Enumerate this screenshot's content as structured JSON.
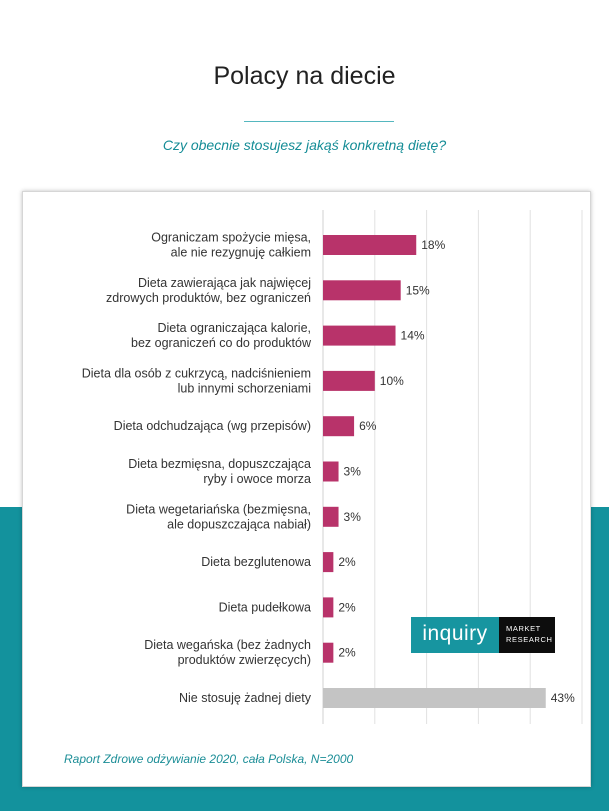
{
  "header": {
    "title": "Polacy na diecie",
    "subtitle": "Czy obecnie stosujesz jakąś konkretną dietę?"
  },
  "chart_data": {
    "type": "bar",
    "orientation": "horizontal",
    "title": "Czy obecnie stosujesz jakąś konkretną dietę?",
    "unit": "%",
    "xlim": [
      0,
      50
    ],
    "grid": true,
    "categories": [
      [
        "Ograniczam spożycie mięsa,",
        "ale nie rezygnuję całkiem"
      ],
      [
        "Dieta zawierająca jak najwięcej",
        "zdrowych produktów, bez ograniczeń"
      ],
      [
        "Dieta ograniczająca kalorie,",
        "bez ograniczeń co do produktów"
      ],
      [
        "Dieta dla osób z cukrzycą, nadciśnieniem",
        "lub innymi schorzeniami"
      ],
      [
        "Dieta odchudzająca (wg  przepisów)"
      ],
      [
        "Dieta bezmięsna, dopuszczająca",
        "ryby i owoce morza"
      ],
      [
        "Dieta wegetariańska (bezmięsna,",
        "ale dopuszczająca nabiał)"
      ],
      [
        "Dieta bezglutenowa"
      ],
      [
        "Dieta pudełkowa"
      ],
      [
        "Dieta wegańska (bez żadnych",
        "produktów zwierzęcych)"
      ],
      [
        "Nie stosuję żadnej diety"
      ]
    ],
    "values": [
      18,
      15,
      14,
      10,
      6,
      3,
      3,
      2,
      2,
      2,
      43
    ],
    "value_labels": [
      "18%",
      "15%",
      "14%",
      "10%",
      "6%",
      "3%",
      "3%",
      "2%",
      "2%",
      "2%",
      "43%"
    ],
    "colors": [
      "#b8336a",
      "#b8336a",
      "#b8336a",
      "#b8336a",
      "#b8336a",
      "#b8336a",
      "#b8336a",
      "#b8336a",
      "#b8336a",
      "#b8336a",
      "#c4c4c4"
    ]
  },
  "logo": {
    "brand": "inquiry",
    "tag_line1": "MARKET",
    "tag_line2": "RESEARCH"
  },
  "footer": {
    "source": "Raport Zdrowe odżywianie 2020, cała Polska, N=2000"
  },
  "colors": {
    "accent": "#13929d",
    "bar": "#b8336a",
    "bar_none": "#c4c4c4"
  }
}
